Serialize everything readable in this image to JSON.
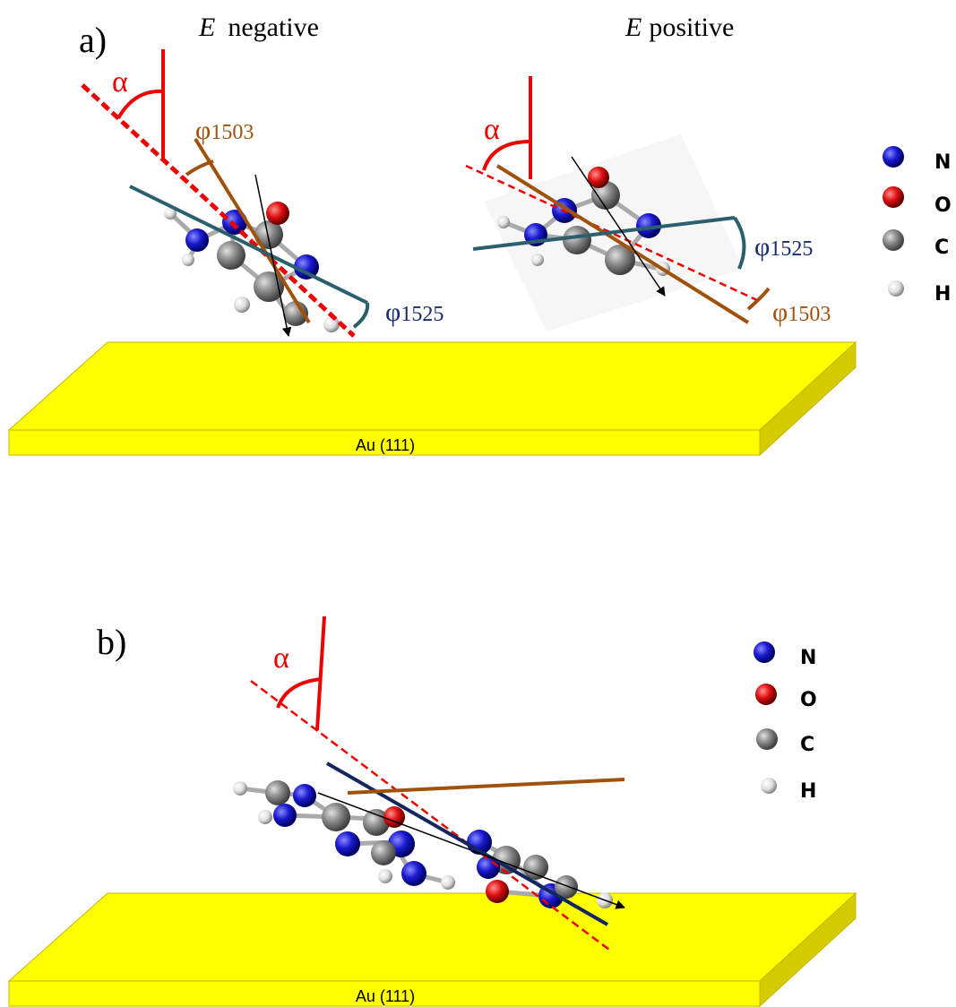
{
  "panel_a": {
    "label": "a)",
    "left": {
      "title_var": "E",
      "title": "negative",
      "alpha": "α",
      "phi_1503": {
        "symbol": "φ",
        "sub": "1503"
      },
      "phi_1525": {
        "symbol": "φ",
        "sub": "1525"
      }
    },
    "right": {
      "title_var": "E",
      "title": "positive",
      "alpha": "α",
      "phi_1525": {
        "symbol": "φ",
        "sub": "1525"
      },
      "phi_1503": {
        "symbol": "φ",
        "sub": "1503"
      }
    },
    "legend": [
      "N",
      "O",
      "C",
      "H"
    ],
    "surface": "Au (111)"
  },
  "panel_b": {
    "label": "b)",
    "alpha": "α",
    "legend": [
      "N",
      "O",
      "C",
      "H"
    ],
    "surface": "Au (111)"
  }
}
